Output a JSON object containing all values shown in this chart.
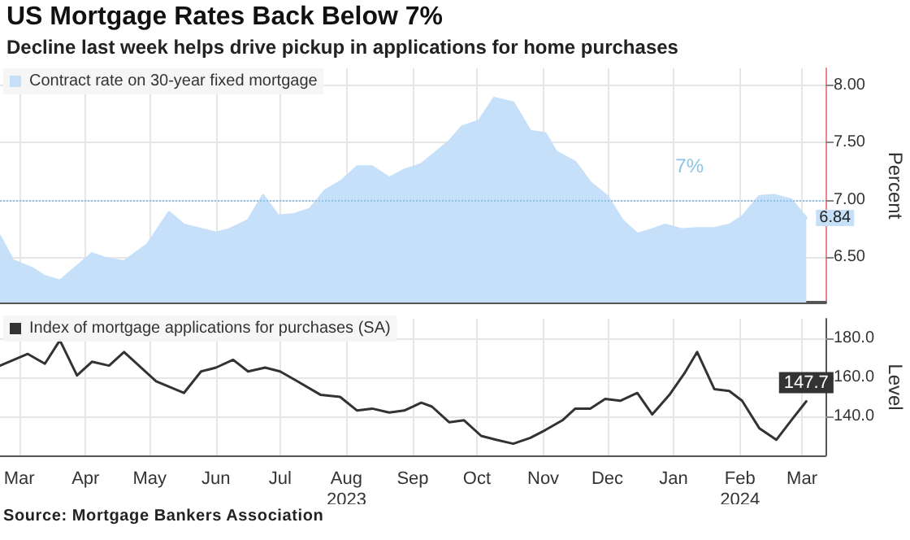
{
  "chart_data": [
    {
      "type": "area",
      "title": "US Mortgage Rates Back Below 7%",
      "subtitle": "Decline last week helps drive pickup in applications for home purchases",
      "ylabel": "Percent",
      "series": [
        {
          "name": "Contract rate on 30-year fixed mortgage",
          "color": "#c6e0fa",
          "x": [
            "2023-03-06",
            "2023-03-12",
            "2023-03-21",
            "2023-03-27",
            "2023-04-03",
            "2023-04-18",
            "2023-04-24",
            "2023-05-03",
            "2023-05-14",
            "2023-05-24",
            "2023-05-31",
            "2023-06-15",
            "2023-06-21",
            "2023-06-30",
            "2023-07-07",
            "2023-07-14",
            "2023-07-21",
            "2023-07-29",
            "2023-08-05",
            "2023-08-13",
            "2023-08-20",
            "2023-08-27",
            "2023-09-04",
            "2023-09-11",
            "2023-09-19",
            "2023-10-02",
            "2023-10-08",
            "2023-10-16",
            "2023-10-23",
            "2023-11-01",
            "2023-11-09",
            "2023-11-16",
            "2023-11-21",
            "2023-11-30",
            "2023-12-07",
            "2023-12-15",
            "2023-12-22",
            "2023-12-29",
            "2024-01-05",
            "2024-01-11",
            "2024-01-19",
            "2024-01-26",
            "2024-02-03",
            "2024-02-10",
            "2024-02-16",
            "2024-02-24",
            "2024-03-02",
            "2024-03-10",
            "2024-03-17"
          ],
          "values": [
            6.68,
            6.47,
            6.4,
            6.33,
            6.29,
            6.53,
            6.49,
            6.46,
            6.61,
            6.89,
            6.78,
            6.71,
            6.74,
            6.82,
            7.04,
            6.86,
            6.87,
            6.92,
            7.08,
            7.17,
            7.29,
            7.29,
            7.19,
            7.26,
            7.31,
            7.51,
            7.64,
            7.69,
            7.89,
            7.85,
            7.6,
            7.58,
            7.42,
            7.33,
            7.15,
            7.03,
            6.82,
            6.7,
            6.74,
            6.78,
            6.74,
            6.75,
            6.75,
            6.78,
            6.85,
            7.03,
            7.04,
            7,
            6.84
          ],
          "value_labels": [
            null,
            null,
            null,
            null,
            null,
            null,
            null,
            null,
            null,
            null,
            null,
            null,
            null,
            null,
            null,
            null,
            null,
            null,
            null,
            null,
            null,
            null,
            null,
            null,
            null,
            null,
            null,
            null,
            null,
            null,
            null,
            null,
            null,
            null,
            null,
            null,
            null,
            null,
            null,
            null,
            null,
            null,
            null,
            null,
            null,
            null,
            null,
            null,
            "6.84"
          ]
        }
      ],
      "xlim": [
        "2023-03-06",
        "2024-03-26"
      ],
      "xticks": [
        {
          "value": "2023-03-15",
          "label": null
        },
        {
          "value": "2023-04-15",
          "label": null
        },
        {
          "value": "2023-05-15",
          "label": null
        },
        {
          "value": "2023-06-15",
          "label": null
        },
        {
          "value": "2023-07-15",
          "label": null
        },
        {
          "value": "2023-08-15",
          "label": null
        },
        {
          "value": "2023-09-15",
          "label": null
        },
        {
          "value": "2023-10-15",
          "label": null
        },
        {
          "value": "2023-11-15",
          "label": null
        },
        {
          "value": "2023-12-15",
          "label": null
        },
        {
          "value": "2024-01-15",
          "label": null
        },
        {
          "value": "2024-02-15",
          "label": null
        },
        {
          "value": "2024-03-15",
          "label": null
        }
      ],
      "ylim": [
        6.1,
        8.15
      ],
      "yticks": [
        {
          "value": 6.5,
          "label": "6.50"
        },
        {
          "value": 7,
          "label": "7.00"
        },
        {
          "value": 7.5,
          "label": "7.50"
        },
        {
          "value": 8,
          "label": "8.00"
        }
      ],
      "ref_lines": [
        {
          "axis": "y",
          "value": 7,
          "label": "7%",
          "color": "#8ec3e6",
          "line_style": "dotted"
        }
      ],
      "tick_labels": "y",
      "grid": true,
      "legend": "top left",
      "marker": "none"
    },
    {
      "type": "line",
      "ylabel": "Level",
      "annotations": [
        "Source: Mortgage Bankers Association"
      ],
      "series": [
        {
          "name": "Index of mortgage applications for purchases (SA)",
          "color": "#333333",
          "x": [
            "2023-03-06",
            "2023-03-19",
            "2023-03-27",
            "2023-04-03",
            "2023-04-11",
            "2023-04-18",
            "2023-04-26",
            "2023-05-03",
            "2023-05-18",
            "2023-05-31",
            "2023-06-08",
            "2023-06-15",
            "2023-06-23",
            "2023-06-30",
            "2023-07-08",
            "2023-07-15",
            "2023-07-23",
            "2023-08-03",
            "2023-08-12",
            "2023-08-20",
            "2023-08-27",
            "2023-09-04",
            "2023-09-11",
            "2023-09-19",
            "2023-09-24",
            "2023-10-02",
            "2023-10-09",
            "2023-10-17",
            "2023-10-24",
            "2023-11-01",
            "2023-11-09",
            "2023-11-16",
            "2023-11-24",
            "2023-11-30",
            "2023-12-07",
            "2023-12-14",
            "2023-12-21",
            "2023-12-29",
            "2024-01-05",
            "2024-01-13",
            "2024-01-20",
            "2024-01-26",
            "2024-02-03",
            "2024-02-10",
            "2024-02-16",
            "2024-02-24",
            "2024-03-03",
            "2024-03-10",
            "2024-03-17"
          ],
          "values": [
            166,
            172,
            167,
            179,
            161,
            168,
            166,
            173,
            158,
            152,
            163,
            165,
            169,
            163,
            165,
            163,
            158,
            151,
            150,
            143,
            144,
            142,
            143,
            147,
            145,
            137,
            138,
            130,
            128,
            126,
            129,
            133,
            138,
            144,
            144,
            149,
            148,
            152,
            141,
            151,
            162,
            173,
            154,
            153,
            148,
            134,
            128,
            138,
            147.7
          ],
          "value_labels": [
            null,
            null,
            null,
            null,
            null,
            null,
            null,
            null,
            null,
            null,
            null,
            null,
            null,
            null,
            null,
            null,
            null,
            null,
            null,
            null,
            null,
            null,
            null,
            null,
            null,
            null,
            null,
            null,
            null,
            null,
            null,
            null,
            null,
            null,
            null,
            null,
            null,
            null,
            null,
            null,
            null,
            null,
            null,
            null,
            null,
            null,
            null,
            null,
            "147.7"
          ]
        }
      ],
      "xlim": [
        "2023-03-06",
        "2024-03-26"
      ],
      "xticks": [
        {
          "value": "2023-03-15",
          "label": "Mar"
        },
        {
          "value": "2023-04-15",
          "label": "Apr"
        },
        {
          "value": "2023-05-15",
          "label": "May"
        },
        {
          "value": "2023-06-15",
          "label": "Jun"
        },
        {
          "value": "2023-07-15",
          "label": "Jul"
        },
        {
          "value": "2023-08-15",
          "label": "Aug\n2023"
        },
        {
          "value": "2023-09-15",
          "label": "Sep"
        },
        {
          "value": "2023-10-15",
          "label": "Oct"
        },
        {
          "value": "2023-11-15",
          "label": "Nov"
        },
        {
          "value": "2023-12-15",
          "label": "Dec"
        },
        {
          "value": "2024-01-15",
          "label": "Jan"
        },
        {
          "value": "2024-02-15",
          "label": "Feb\n2024"
        },
        {
          "value": "2024-03-15",
          "label": "Mar"
        }
      ],
      "ylim": [
        120,
        190
      ],
      "yticks": [
        {
          "value": 140,
          "label": "140.0"
        },
        {
          "value": 160,
          "label": "160.0"
        },
        {
          "value": 180,
          "label": "180.0"
        }
      ],
      "grid": true,
      "legend": "top left",
      "marker": "none"
    }
  ]
}
